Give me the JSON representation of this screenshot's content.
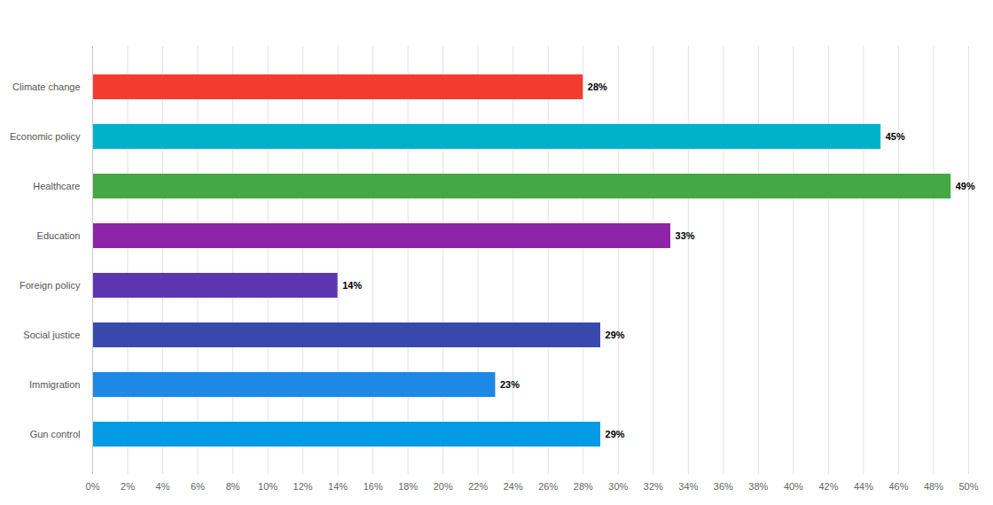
{
  "chart_data": {
    "type": "bar",
    "orientation": "horizontal",
    "categories": [
      "Climate change",
      "Economic policy",
      "Healthcare",
      "Education",
      "Foreign policy",
      "Social justice",
      "Immigration",
      "Gun control"
    ],
    "values": [
      28,
      45,
      49,
      33,
      14,
      29,
      23,
      29
    ],
    "value_labels": [
      "28%",
      "45%",
      "49%",
      "33%",
      "14%",
      "29%",
      "23%",
      "29%"
    ],
    "colors": [
      "#f23c30",
      "#00b1cc",
      "#43a845",
      "#8e24aa",
      "#5e35b1",
      "#3949ab",
      "#1e88e5",
      "#039be5"
    ],
    "data_labels": true,
    "grid": true,
    "xlim": [
      0,
      50
    ],
    "xticks": [
      {
        "value": 0,
        "label": "0%"
      },
      {
        "value": 2,
        "label": "2%"
      },
      {
        "value": 4,
        "label": "4%"
      },
      {
        "value": 6,
        "label": "6%"
      },
      {
        "value": 8,
        "label": "8%"
      },
      {
        "value": 10,
        "label": "10%"
      },
      {
        "value": 12,
        "label": "12%"
      },
      {
        "value": 14,
        "label": "14%"
      },
      {
        "value": 16,
        "label": "16%"
      },
      {
        "value": 18,
        "label": "18%"
      },
      {
        "value": 20,
        "label": "20%"
      },
      {
        "value": 22,
        "label": "22%"
      },
      {
        "value": 24,
        "label": "24%"
      },
      {
        "value": 26,
        "label": "26%"
      },
      {
        "value": 28,
        "label": "28%"
      },
      {
        "value": 30,
        "label": "30%"
      },
      {
        "value": 32,
        "label": "32%"
      },
      {
        "value": 34,
        "label": "34%"
      },
      {
        "value": 36,
        "label": "36%"
      },
      {
        "value": 38,
        "label": "38%"
      },
      {
        "value": 40,
        "label": "40%"
      },
      {
        "value": 42,
        "label": "42%"
      },
      {
        "value": 44,
        "label": "44%"
      },
      {
        "value": 46,
        "label": "46%"
      },
      {
        "value": 48,
        "label": "48%"
      },
      {
        "value": 50,
        "label": "50%"
      }
    ]
  }
}
